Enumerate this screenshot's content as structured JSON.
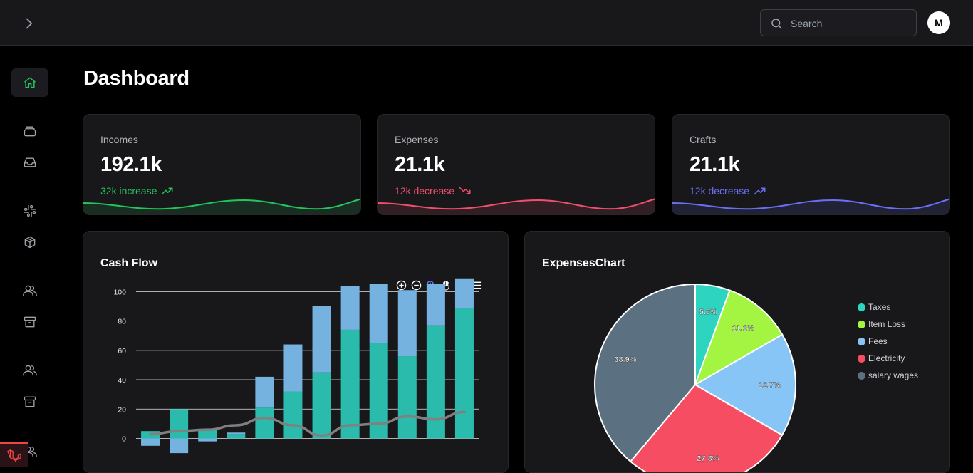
{
  "header": {
    "search_placeholder": "Search",
    "avatar_initial": "M"
  },
  "sidebar": {
    "items": [
      {
        "icon": "home-icon",
        "active": true
      },
      {
        "icon": "layers-icon"
      },
      {
        "icon": "inbox-icon"
      },
      {
        "icon": "slack-icon"
      },
      {
        "icon": "cube-icon"
      },
      {
        "icon": "users-icon"
      },
      {
        "icon": "archive-icon"
      },
      {
        "icon": "users-icon"
      },
      {
        "icon": "archive-icon"
      },
      {
        "icon": "users-icon"
      }
    ],
    "badge_icon": "laravel-icon"
  },
  "page": {
    "title": "Dashboard"
  },
  "stats": [
    {
      "label": "Incomes",
      "value": "192.1k",
      "trend": "32k increase",
      "color": "#22c55e",
      "trend_icon": "trending-up-icon"
    },
    {
      "label": "Expenses",
      "value": "21.1k",
      "trend": "12k decrease",
      "color": "#f0506e",
      "trend_icon": "trending-down-icon"
    },
    {
      "label": "Crafts",
      "value": "21.1k",
      "trend": "12k decrease",
      "color": "#6b6ff5",
      "trend_icon": "trending-up-icon"
    }
  ],
  "cashflow": {
    "title": "Cash Flow",
    "toolbar": [
      "zoom-in-icon",
      "zoom-out-icon",
      "selection-zoom-icon",
      "pan-hand-icon",
      "reset-home-icon",
      "menu-icon"
    ]
  },
  "expenses": {
    "title": "ExpensesChart"
  },
  "chart_data": [
    {
      "type": "bar",
      "title": "Cash Flow",
      "stacked": true,
      "ylim": [
        -8,
        105
      ],
      "y_ticks": [
        "0",
        "20",
        "40",
        "60",
        "80",
        "100"
      ],
      "series": [
        {
          "color": "#2bbbad",
          "values": [
            5,
            20,
            6,
            3,
            21,
            32,
            45,
            74,
            65,
            56,
            77,
            89
          ]
        },
        {
          "color": "#76b2e0",
          "values": [
            -5,
            -10,
            -2,
            1,
            21,
            32,
            45,
            30,
            40,
            45,
            28,
            20
          ]
        }
      ],
      "line": {
        "color": "#808080",
        "values": [
          3,
          5,
          6,
          9,
          14,
          9,
          2,
          9,
          10,
          15,
          13,
          18
        ]
      },
      "grid": true
    },
    {
      "type": "pie",
      "title": "ExpensesChart",
      "slices": [
        {
          "label": "Taxes",
          "value": 5.6,
          "text": "5.6%",
          "color": "#2dd4bf"
        },
        {
          "label": "Item Loss",
          "value": 11.1,
          "text": "11.1%",
          "color": "#a3f542"
        },
        {
          "label": "Fees",
          "value": 16.7,
          "text": "16.7%",
          "color": "#86c5f5"
        },
        {
          "label": "Electricity",
          "value": 27.8,
          "text": "27.8%",
          "color": "#f64d62"
        },
        {
          "label": "salary wages",
          "value": 38.9,
          "text": "38.9%",
          "color": "#5b7080"
        }
      ],
      "legend": "right"
    }
  ]
}
